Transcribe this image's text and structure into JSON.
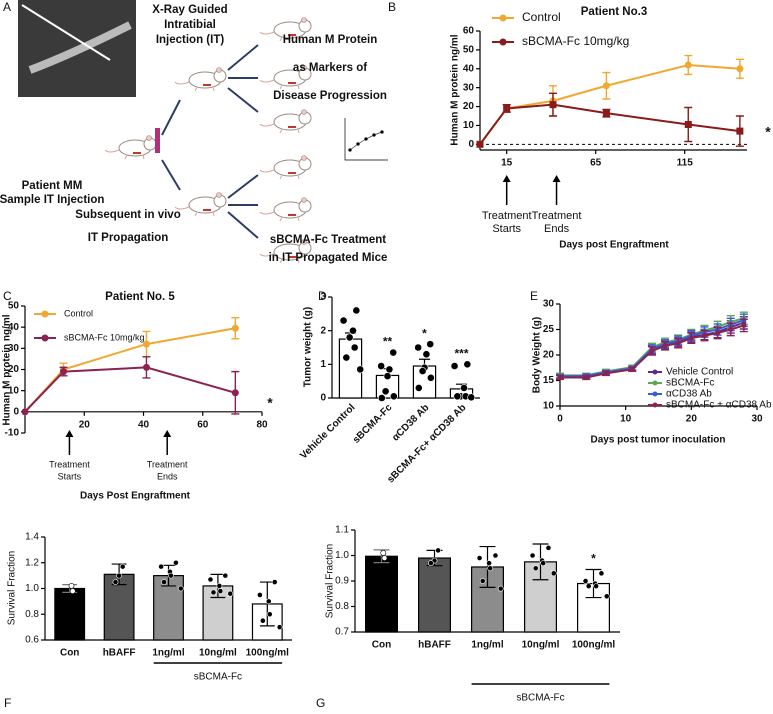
{
  "diagram": {
    "panel": "A",
    "texts": [
      [
        "X-Ray Guided",
        "Intratibial",
        "Injection (IT)"
      ],
      [
        "Human M Protein",
        "as Markers of",
        "Disease Progression"
      ],
      [
        "Patient MM",
        "Sample IT Injection"
      ],
      [
        "Subsequent in vivo",
        "IT Propagation"
      ],
      [
        "sBCMA-Fc Treatment",
        "in IT Propagated Mice"
      ]
    ]
  },
  "chart_data": [
    {
      "panel": "B",
      "type": "line",
      "title": "Patient No.3",
      "ylabel": "Human M protein ng/ml",
      "xlabel": "Days post Engraftment",
      "x": [
        0,
        15,
        41,
        71,
        117,
        146
      ],
      "xlim": [
        0,
        150
      ],
      "xticks": [
        15,
        65,
        115
      ],
      "ylim": [
        -3,
        60
      ],
      "yticks": [
        0,
        10,
        20,
        30,
        40,
        50,
        60
      ],
      "zero_line": true,
      "legend": "upper left",
      "series": [
        {
          "name": "Control",
          "color": "#f0a830",
          "values": [
            0,
            19,
            23,
            31,
            42,
            40
          ],
          "errors": [
            null,
            2,
            8,
            7,
            5,
            5
          ]
        },
        {
          "name": "sBCMA-Fc 10mg/kg",
          "color": "#8b1a1a",
          "values": [
            0,
            19,
            21,
            16.5,
            10.5,
            7
          ],
          "errors": [
            null,
            2,
            6,
            2,
            9,
            8
          ]
        }
      ],
      "annotations": [
        [
          "Treatment",
          "Starts"
        ],
        [
          "Treatment",
          "Ends"
        ]
      ],
      "significance": "*"
    },
    {
      "panel": "C",
      "type": "line",
      "title": "Patient No. 5",
      "ylabel": "Human M protein ng/ml",
      "xlabel": "Days Post Engraftment",
      "x": [
        0,
        13,
        41,
        71
      ],
      "xlim": [
        0,
        80
      ],
      "xticks": [
        20,
        40,
        60,
        80
      ],
      "ylim": [
        -10,
        50
      ],
      "yticks": [
        -10,
        0,
        10,
        20,
        30,
        40,
        50
      ],
      "x_axis_at_zero": true,
      "legend": "upper left",
      "series": [
        {
          "name": "Control",
          "color": "#f0a830",
          "values": [
            0,
            20,
            32,
            39.5
          ],
          "errors": [
            null,
            3,
            6,
            5
          ]
        },
        {
          "name": "sBCMA-Fc 10mg/kg",
          "color": "#8b2252",
          "values": [
            0,
            19,
            21,
            9
          ],
          "errors": [
            null,
            2,
            5,
            10
          ]
        }
      ],
      "annotations": [
        [
          "Treatment",
          "Starts"
        ],
        [
          "Treatment",
          "Ends"
        ]
      ],
      "significance": "*"
    },
    {
      "panel": "D",
      "type": "bar",
      "ylabel": "Tumor weight (g)",
      "categories": [
        "Vehicle Control",
        "sBCMA-Fc",
        "αCD38 Ab",
        "sBCMA-Fc+ αCD38 Ab"
      ],
      "values": [
        1.75,
        0.67,
        0.95,
        0.27
      ],
      "errors": [
        0.18,
        0.2,
        0.2,
        0.14
      ],
      "errors_up_only": true,
      "color": "#ffffff",
      "points": [
        [
          2.6,
          2.3,
          2.0,
          1.8,
          1.8,
          1.5,
          1.2,
          0.85
        ],
        [
          1.35,
          0.95,
          0.85,
          0.65,
          0.2,
          0.05,
          0.0
        ],
        [
          1.6,
          1.5,
          1.3,
          0.9,
          0.8,
          0.6,
          0.3
        ],
        [
          1.0,
          0.95,
          0.3,
          0.05,
          0.05,
          0.05,
          0.05,
          0.02
        ]
      ],
      "significance": [
        null,
        "**",
        "*",
        "***"
      ],
      "ylim": [
        0,
        3
      ],
      "yticks": [
        0,
        1,
        2,
        3
      ]
    },
    {
      "panel": "E",
      "type": "line",
      "ylabel": "Body Weight (g)",
      "xlabel": "Days post tumor inoculation",
      "x": [
        0,
        4,
        7,
        11,
        14,
        16,
        18,
        20,
        22,
        24,
        26,
        28
      ],
      "xlim": [
        0,
        30
      ],
      "xticks": [
        0,
        10,
        20,
        30
      ],
      "ylim": [
        10,
        30
      ],
      "yticks": [
        10,
        15,
        20,
        25,
        30
      ],
      "legend": "lower right",
      "series": [
        {
          "name": "Vehicle Control",
          "color": "#5b2c8f",
          "values": [
            15.7,
            15.7,
            16.5,
            17.2,
            21,
            22,
            22.5,
            23.5,
            24,
            24.5,
            25.5,
            26.3
          ],
          "errors": [
            0.4,
            0.4,
            0.4,
            0.4,
            0.8,
            0.8,
            0.9,
            1,
            1,
            1.1,
            1.2,
            1.2
          ]
        },
        {
          "name": "sBCMA-Fc",
          "color": "#5ba85b",
          "values": [
            16,
            16,
            16.8,
            17.6,
            21.5,
            22.5,
            23,
            24,
            24.8,
            25.5,
            26.5,
            27.2
          ],
          "errors": [
            0.4,
            0.4,
            0.4,
            0.4,
            0.8,
            0.8,
            0.9,
            1,
            1,
            1.1,
            1.2,
            1.2
          ]
        },
        {
          "name": "αCD38 Ab",
          "color": "#3b5bd9",
          "values": [
            15.8,
            15.9,
            16.6,
            17.4,
            21.2,
            22.2,
            22.8,
            23.8,
            24.5,
            25,
            26,
            26.8
          ],
          "errors": [
            0.4,
            0.4,
            0.4,
            0.4,
            0.8,
            0.8,
            0.9,
            1,
            1,
            1.1,
            1.2,
            1.2
          ]
        },
        {
          "name": "sBCMA-Fc + αCD38 Ab",
          "color": "#8b2252",
          "values": [
            15.6,
            15.6,
            16.4,
            17.2,
            20.8,
            21.8,
            22.3,
            23.3,
            23.8,
            24.3,
            25,
            25.8
          ],
          "errors": [
            0.4,
            0.4,
            0.4,
            0.4,
            0.8,
            0.8,
            0.9,
            1,
            1,
            1.1,
            1.2,
            1.2
          ]
        }
      ]
    },
    {
      "panel": "F",
      "type": "bar",
      "ylabel": "Survival Fraction",
      "categories": [
        "Con",
        "hBAFF",
        "1ng/ml",
        "10ng/ml",
        "100ng/ml"
      ],
      "values": [
        1.0,
        1.11,
        1.1,
        1.02,
        0.88
      ],
      "errors": [
        0.03,
        0.08,
        0.08,
        0.09,
        0.17
      ],
      "colors": [
        "#000000",
        "#555555",
        "#8c8c8c",
        "#cfcfcf",
        "#ffffff"
      ],
      "points": [
        [
          1.02,
          0.98
        ],
        [
          1.17,
          1.1,
          1.05
        ],
        [
          1.2,
          1.17,
          1.13,
          1.1,
          1.05,
          1.0
        ],
        [
          1.1,
          1.07,
          1.02,
          0.98,
          0.97,
          0.96
        ],
        [
          1.05,
          0.95,
          0.9,
          0.8,
          0.75,
          0.7
        ]
      ],
      "group_label": "sBCMA-Fc",
      "ylim": [
        0.6,
        1.4
      ],
      "yticks": [
        0.6,
        0.8,
        {
          "value": 1,
          "label": "1.0"
        },
        1.2,
        1.4
      ]
    },
    {
      "panel": "G",
      "type": "bar",
      "ylabel": "Survival Fraction",
      "categories": [
        "Con",
        "hBAFF",
        "1ng/ml",
        "10ng/ml",
        "100ng/ml"
      ],
      "values": [
        0.997,
        0.99,
        0.955,
        0.975,
        0.89
      ],
      "errors": [
        0.025,
        0.03,
        0.08,
        0.07,
        0.055
      ],
      "colors": [
        "#000000",
        "#555555",
        "#8c8c8c",
        "#cfcfcf",
        "#ffffff"
      ],
      "points": [
        [
          1.01,
          0.99
        ],
        [
          1.02,
          0.98,
          0.97
        ],
        [
          1.0,
          0.99,
          0.97,
          0.95,
          0.9,
          0.87
        ],
        [
          1.03,
          1.0,
          0.98,
          0.97,
          0.95,
          0.93
        ],
        [
          0.93,
          0.9,
          0.89,
          0.88,
          0.88,
          0.84
        ]
      ],
      "significance": [
        null,
        null,
        null,
        null,
        "*"
      ],
      "group_label": "sBCMA-Fc",
      "ylim": [
        0.7,
        1.1
      ],
      "yticks": [
        0.7,
        0.8,
        0.9,
        {
          "value": 1,
          "label": "1.0"
        },
        1.1
      ]
    }
  ]
}
